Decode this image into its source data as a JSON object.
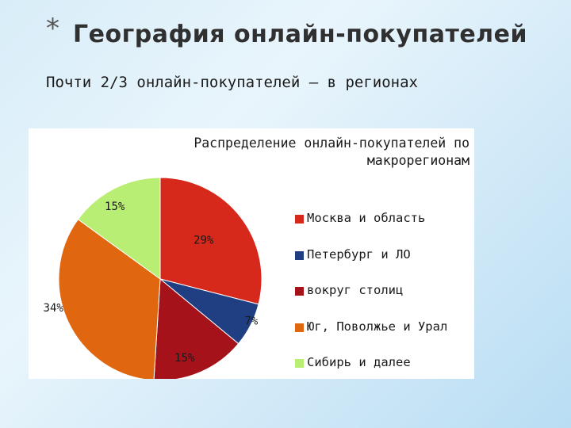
{
  "slide": {
    "bullet": "*",
    "title": "География онлайн-покупателей",
    "subtitle": "Почти 2/3 онлайн-покупателей – в регионах"
  },
  "chart_data": {
    "type": "pie",
    "title": "Распределение онлайн-покупателей по макрорегионам",
    "title_lines": [
      "Распределение онлайн-покупателей по",
      "макрорегионам"
    ],
    "legend_position": "right",
    "slices": [
      {
        "label": "Москва и область",
        "value": 29,
        "value_label": "29%",
        "color": "#d7281c"
      },
      {
        "label": "Петербург и ЛО",
        "value": 7,
        "value_label": "7%",
        "color": "#1f3f82"
      },
      {
        "label": "вокруг столиц",
        "value": 15,
        "value_label": "15%",
        "color": "#a5121a"
      },
      {
        "label": "Юг, Поволжье и Урал",
        "value": 34,
        "value_label": "34%",
        "color": "#e06610"
      },
      {
        "label": "Сибирь и далее",
        "value": 15,
        "value_label": "15%",
        "color": "#b9ee74"
      }
    ]
  }
}
